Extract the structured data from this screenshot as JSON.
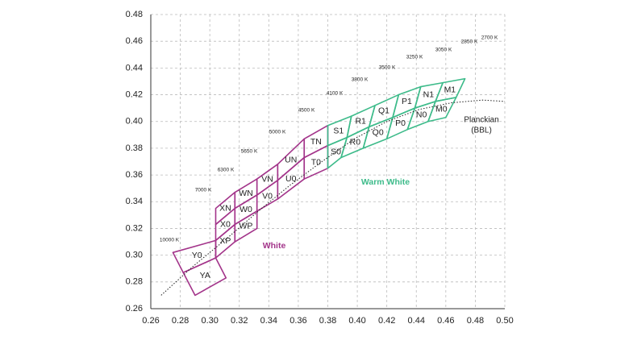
{
  "chart_data": {
    "type": "polygon",
    "xlim": [
      0.26,
      0.5
    ],
    "ylim": [
      0.26,
      0.48
    ],
    "grid": true,
    "xticks": [
      0.26,
      0.28,
      {
        "value": 0.3,
        "label": "0.30"
      },
      0.32,
      0.34,
      0.36,
      0.38,
      {
        "value": 0.4,
        "label": "0.40"
      },
      0.42,
      0.44,
      0.46,
      0.48,
      {
        "value": 0.5,
        "label": "0.50"
      }
    ],
    "yticks": [
      0.26,
      0.28,
      {
        "value": 0.3,
        "label": "0.30"
      },
      0.32,
      0.34,
      0.36,
      0.38,
      {
        "value": 0.4,
        "label": "0.40"
      },
      0.42,
      0.44,
      0.46,
      0.48
    ],
    "regions": [
      {
        "name": "White",
        "color": "#a3348a",
        "bins": [
          {
            "label": "Y0",
            "x": [
              0.275,
              0.304,
              0.304,
              0.282
            ],
            "y": [
              0.302,
              0.311,
              0.298,
              0.287
            ]
          },
          {
            "label": "YA",
            "x": [
              0.282,
              0.304,
              0.311,
              0.29
            ],
            "y": [
              0.287,
              0.298,
              0.283,
              0.27
            ]
          },
          {
            "label": "XN",
            "x": [
              0.304,
              0.317,
              0.317,
              0.304
            ],
            "y": [
              0.335,
              0.347,
              0.335,
              0.323
            ]
          },
          {
            "label": "X0",
            "x": [
              0.304,
              0.317,
              0.317,
              0.304
            ],
            "y": [
              0.323,
              0.335,
              0.323,
              0.311
            ]
          },
          {
            "label": "XP",
            "x": [
              0.304,
              0.317,
              0.317,
              0.304
            ],
            "y": [
              0.311,
              0.323,
              0.31,
              0.298
            ]
          },
          {
            "label": "WN",
            "x": [
              0.317,
              0.332,
              0.332,
              0.317
            ],
            "y": [
              0.347,
              0.357,
              0.345,
              0.335
            ]
          },
          {
            "label": "W0",
            "x": [
              0.317,
              0.332,
              0.332,
              0.317
            ],
            "y": [
              0.335,
              0.345,
              0.333,
              0.323
            ]
          },
          {
            "label": "WP",
            "x": [
              0.317,
              0.332,
              0.332,
              0.317
            ],
            "y": [
              0.323,
              0.333,
              0.32,
              0.31
            ]
          },
          {
            "label": "VN",
            "x": [
              0.332,
              0.346,
              0.346,
              0.332
            ],
            "y": [
              0.357,
              0.368,
              0.356,
              0.345
            ]
          },
          {
            "label": "V0",
            "x": [
              0.332,
              0.346,
              0.346,
              0.332
            ],
            "y": [
              0.345,
              0.356,
              0.342,
              0.333
            ]
          },
          {
            "label": "UN",
            "x": [
              0.346,
              0.364,
              0.364,
              0.346
            ],
            "y": [
              0.368,
              0.387,
              0.373,
              0.356
            ]
          },
          {
            "label": "U0",
            "x": [
              0.346,
              0.364,
              0.364,
              0.346
            ],
            "y": [
              0.356,
              0.373,
              0.357,
              0.342
            ]
          },
          {
            "label": "TN",
            "x": [
              0.364,
              0.38,
              0.38,
              0.364
            ],
            "y": [
              0.387,
              0.397,
              0.382,
              0.373
            ]
          },
          {
            "label": "T0",
            "x": [
              0.364,
              0.38,
              0.38,
              0.364
            ],
            "y": [
              0.373,
              0.382,
              0.365,
              0.357
            ]
          }
        ]
      },
      {
        "name": "Warm White",
        "color": "#3dbb8a",
        "bins": [
          {
            "label": "S1",
            "x": [
              0.38,
              0.396,
              0.393,
              0.38
            ],
            "y": [
              0.397,
              0.404,
              0.388,
              0.382
            ]
          },
          {
            "label": "S0",
            "x": [
              0.38,
              0.393,
              0.389,
              0.38
            ],
            "y": [
              0.382,
              0.388,
              0.373,
              0.365
            ]
          },
          {
            "label": "R1",
            "x": [
              0.396,
              0.412,
              0.408,
              0.393
            ],
            "y": [
              0.404,
              0.412,
              0.396,
              0.388
            ]
          },
          {
            "label": "R0",
            "x": [
              0.393,
              0.408,
              0.404,
              0.389
            ],
            "y": [
              0.388,
              0.396,
              0.38,
              0.373
            ]
          },
          {
            "label": "Q1",
            "x": [
              0.412,
              0.428,
              0.424,
              0.408
            ],
            "y": [
              0.412,
              0.42,
              0.403,
              0.396
            ]
          },
          {
            "label": "Q0",
            "x": [
              0.408,
              0.424,
              0.42,
              0.404
            ],
            "y": [
              0.396,
              0.403,
              0.387,
              0.38
            ]
          },
          {
            "label": "P1",
            "x": [
              0.428,
              0.443,
              0.439,
              0.424
            ],
            "y": [
              0.42,
              0.426,
              0.41,
              0.403
            ]
          },
          {
            "label": "P0",
            "x": [
              0.424,
              0.439,
              0.434,
              0.42
            ],
            "y": [
              0.403,
              0.41,
              0.394,
              0.387
            ]
          },
          {
            "label": "N1",
            "x": [
              0.443,
              0.458,
              0.453,
              0.439
            ],
            "y": [
              0.426,
              0.429,
              0.415,
              0.41
            ]
          },
          {
            "label": "N0",
            "x": [
              0.439,
              0.453,
              0.448,
              0.434
            ],
            "y": [
              0.41,
              0.415,
              0.4,
              0.394
            ]
          },
          {
            "label": "M1",
            "x": [
              0.458,
              0.473,
              0.467,
              0.453
            ],
            "y": [
              0.429,
              0.432,
              0.418,
              0.415
            ]
          },
          {
            "label": "M0",
            "x": [
              0.453,
              0.467,
              0.46,
              0.448
            ],
            "y": [
              0.415,
              0.418,
              0.403,
              0.4
            ]
          }
        ]
      }
    ],
    "locus": {
      "name": "Planckian",
      "abbr": "(BBL)",
      "x": [
        0.267,
        0.289,
        0.311,
        0.333,
        0.354,
        0.376,
        0.398,
        0.42,
        0.442,
        0.464,
        0.485,
        0.5
      ],
      "y": [
        0.27,
        0.292,
        0.312,
        0.333,
        0.352,
        0.37,
        0.387,
        0.4,
        0.409,
        0.414,
        0.416,
        0.415
      ]
    },
    "cct_labels": [
      "10000 K",
      "7000 K",
      "6300 K",
      "5650 K",
      "5000 K",
      "4500 K",
      "4100 K",
      "3800 K",
      "3500 K",
      "3250 K",
      "3050 K",
      "2850 K",
      "2700 K"
    ]
  }
}
